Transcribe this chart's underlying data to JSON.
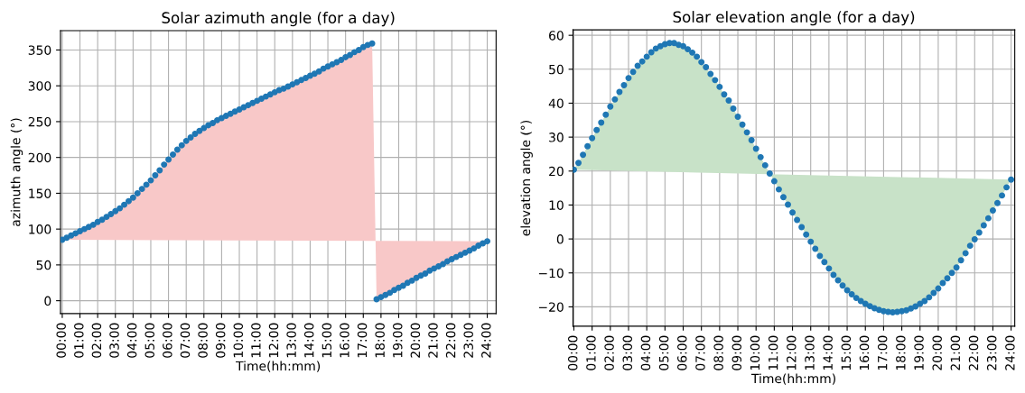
{
  "chart_data": [
    {
      "type": "scatter",
      "title": "Solar azimuth angle (for a day)",
      "xlabel": "Time(hh:mm)",
      "ylabel": "azimuth angle (°)",
      "grid": true,
      "x": [
        0,
        0.25,
        0.5,
        0.75,
        1,
        1.25,
        1.5,
        1.75,
        2,
        2.25,
        2.5,
        2.75,
        3,
        3.25,
        3.5,
        3.75,
        4,
        4.25,
        4.5,
        4.75,
        5,
        5.25,
        5.5,
        5.75,
        6,
        6.25,
        6.5,
        6.75,
        7,
        7.25,
        7.5,
        7.75,
        8,
        8.25,
        8.5,
        8.75,
        9,
        9.25,
        9.5,
        9.75,
        10,
        10.25,
        10.5,
        10.75,
        11,
        11.25,
        11.5,
        11.75,
        12,
        12.25,
        12.5,
        12.75,
        13,
        13.25,
        13.5,
        13.75,
        14,
        14.25,
        14.5,
        14.75,
        15,
        15.25,
        15.5,
        15.75,
        16,
        16.25,
        16.5,
        16.75,
        17,
        17.25,
        17.5,
        17.75,
        18,
        18.25,
        18.5,
        18.75,
        19,
        19.25,
        19.5,
        19.75,
        20,
        20.25,
        20.5,
        20.75,
        21,
        21.25,
        21.5,
        21.75,
        22,
        22.25,
        22.5,
        22.75,
        23,
        23.25,
        23.5,
        23.75,
        24
      ],
      "xlim": [
        -0.1,
        24.5
      ],
      "ylim": [
        -18,
        377
      ],
      "yticks": [
        0,
        50,
        100,
        150,
        200,
        250,
        300,
        350
      ],
      "xticks": [
        {
          "value": 0,
          "label": "00:00"
        },
        {
          "value": 1,
          "label": "01:00"
        },
        {
          "value": 2,
          "label": "02:00"
        },
        {
          "value": 3,
          "label": "03:00"
        },
        {
          "value": 4,
          "label": "04:00"
        },
        {
          "value": 5,
          "label": "05:00"
        },
        {
          "value": 6,
          "label": "06:00"
        },
        {
          "value": 7,
          "label": "07:00"
        },
        {
          "value": 8,
          "label": "08:00"
        },
        {
          "value": 9,
          "label": "09:00"
        },
        {
          "value": 10,
          "label": "10:00"
        },
        {
          "value": 11,
          "label": "11:00"
        },
        {
          "value": 12,
          "label": "12:00"
        },
        {
          "value": 13,
          "label": "13:00"
        },
        {
          "value": 14,
          "label": "14:00"
        },
        {
          "value": 15,
          "label": "15:00"
        },
        {
          "value": 16,
          "label": "16:00"
        },
        {
          "value": 17,
          "label": "17:00"
        },
        {
          "value": 18,
          "label": "18:00"
        },
        {
          "value": 19,
          "label": "19:00"
        },
        {
          "value": 20,
          "label": "20:00"
        },
        {
          "value": 21,
          "label": "21:00"
        },
        {
          "value": 22,
          "label": "22:00"
        },
        {
          "value": 23,
          "label": "23:00"
        },
        {
          "value": 24,
          "label": "24:00"
        }
      ],
      "series": [
        {
          "type": "area",
          "color": "#f8c8c8",
          "values": [
            85,
            88,
            91,
            94,
            97,
            100,
            103,
            106,
            110,
            113,
            117,
            121,
            125,
            129,
            134,
            139,
            144,
            150,
            156,
            162,
            168,
            175,
            182,
            190,
            197,
            204,
            211,
            217,
            223,
            228,
            233,
            237,
            241,
            245,
            248,
            252,
            255,
            258,
            261,
            264,
            267,
            270,
            273,
            276,
            279,
            282,
            285,
            288,
            291,
            294,
            296,
            299,
            302,
            305,
            308,
            311,
            314,
            317,
            320,
            324,
            327,
            330,
            333,
            336,
            340,
            343,
            347,
            350,
            354,
            357,
            359,
            2,
            5,
            8,
            11,
            15,
            18,
            21,
            25,
            28,
            32,
            35,
            38,
            42,
            45,
            48,
            51,
            55,
            58,
            61,
            64,
            67,
            70,
            73,
            77,
            80,
            83
          ]
        },
        {
          "marker": "circle",
          "color": "#1f77b4",
          "values": [
            85,
            88,
            91,
            94,
            97,
            100,
            103,
            106,
            110,
            113,
            117,
            121,
            125,
            129,
            134,
            139,
            144,
            150,
            156,
            162,
            168,
            175,
            182,
            190,
            197,
            204,
            211,
            217,
            223,
            228,
            233,
            237,
            241,
            245,
            248,
            252,
            255,
            258,
            261,
            264,
            267,
            270,
            273,
            276,
            279,
            282,
            285,
            288,
            291,
            294,
            296,
            299,
            302,
            305,
            308,
            311,
            314,
            317,
            320,
            324,
            327,
            330,
            333,
            336,
            340,
            343,
            347,
            350,
            354,
            357,
            359,
            2,
            5,
            8,
            11,
            15,
            18,
            21,
            25,
            28,
            32,
            35,
            38,
            42,
            45,
            48,
            51,
            55,
            58,
            61,
            64,
            67,
            70,
            73,
            77,
            80,
            83
          ]
        }
      ]
    },
    {
      "type": "scatter",
      "title": "Solar elevation angle (for a day)",
      "xlabel": "Time(hh:mm)",
      "ylabel": "elevation angle (°)",
      "grid": true,
      "x": [
        0,
        0.25,
        0.5,
        0.75,
        1,
        1.25,
        1.5,
        1.75,
        2,
        2.25,
        2.5,
        2.75,
        3,
        3.25,
        3.5,
        3.75,
        4,
        4.25,
        4.5,
        4.75,
        5,
        5.25,
        5.5,
        5.75,
        6,
        6.25,
        6.5,
        6.75,
        7,
        7.25,
        7.5,
        7.75,
        8,
        8.25,
        8.5,
        8.75,
        9,
        9.25,
        9.5,
        9.75,
        10,
        10.25,
        10.5,
        10.75,
        11,
        11.25,
        11.5,
        11.75,
        12,
        12.25,
        12.5,
        12.75,
        13,
        13.25,
        13.5,
        13.75,
        14,
        14.25,
        14.5,
        14.75,
        15,
        15.25,
        15.5,
        15.75,
        16,
        16.25,
        16.5,
        16.75,
        17,
        17.25,
        17.5,
        17.75,
        18,
        18.25,
        18.5,
        18.75,
        19,
        19.25,
        19.5,
        19.75,
        20,
        20.25,
        20.5,
        20.75,
        21,
        21.25,
        21.5,
        21.75,
        22,
        22.25,
        22.5,
        22.75,
        23,
        23.25,
        23.5,
        23.75,
        24
      ],
      "xlim": [
        -0.05,
        24.2
      ],
      "ylim": [
        -25.7,
        61.6
      ],
      "yticks": [
        {
          "value": -20,
          "label": "−20"
        },
        {
          "value": -10,
          "label": "−10"
        },
        0,
        10,
        20,
        30,
        40,
        50,
        60
      ],
      "xticks": [
        {
          "value": 0,
          "label": "00:00"
        },
        {
          "value": 1,
          "label": "01:00"
        },
        {
          "value": 2,
          "label": "02:00"
        },
        {
          "value": 3,
          "label": "03:00"
        },
        {
          "value": 4,
          "label": "04:00"
        },
        {
          "value": 5,
          "label": "05:00"
        },
        {
          "value": 6,
          "label": "06:00"
        },
        {
          "value": 7,
          "label": "07:00"
        },
        {
          "value": 8,
          "label": "08:00"
        },
        {
          "value": 9,
          "label": "09:00"
        },
        {
          "value": 10,
          "label": "10:00"
        },
        {
          "value": 11,
          "label": "11:00"
        },
        {
          "value": 12,
          "label": "12:00"
        },
        {
          "value": 13,
          "label": "13:00"
        },
        {
          "value": 14,
          "label": "14:00"
        },
        {
          "value": 15,
          "label": "15:00"
        },
        {
          "value": 16,
          "label": "16:00"
        },
        {
          "value": 17,
          "label": "17:00"
        },
        {
          "value": 18,
          "label": "18:00"
        },
        {
          "value": 19,
          "label": "19:00"
        },
        {
          "value": 20,
          "label": "20:00"
        },
        {
          "value": 21,
          "label": "21:00"
        },
        {
          "value": 22,
          "label": "22:00"
        },
        {
          "value": 23,
          "label": "23:00"
        },
        {
          "value": 24,
          "label": "24:00"
        }
      ],
      "series": [
        {
          "type": "area",
          "color": "#c8e2c8",
          "values": [
            20.4,
            22.4,
            24.8,
            27.3,
            29.7,
            32.1,
            34.3,
            36.6,
            39.0,
            41.1,
            43.3,
            45.3,
            47.4,
            49.2,
            51.0,
            52.3,
            53.7,
            55.0,
            56.1,
            56.8,
            57.4,
            57.7,
            57.7,
            57.2,
            56.8,
            55.9,
            54.9,
            53.7,
            52.1,
            50.6,
            48.6,
            46.8,
            44.8,
            42.6,
            40.8,
            38.4,
            36.0,
            33.7,
            31.4,
            29.1,
            26.6,
            24.1,
            21.7,
            19.3,
            17.0,
            14.6,
            12.3,
            10.1,
            7.8,
            5.6,
            3.5,
            1.3,
            -0.8,
            -2.9,
            -5.0,
            -6.8,
            -8.7,
            -10.6,
            -12.2,
            -13.7,
            -15.1,
            -16.3,
            -17.4,
            -18.3,
            -19.1,
            -19.8,
            -20.4,
            -20.9,
            -21.3,
            -21.5,
            -21.6,
            -21.5,
            -21.3,
            -21.0,
            -20.5,
            -19.9,
            -19.1,
            -18.3,
            -17.2,
            -15.9,
            -14.6,
            -13.0,
            -11.6,
            -10.0,
            -8.4,
            -6.3,
            -4.2,
            -2.0,
            -0.1,
            1.9,
            4.0,
            6.1,
            8.4,
            10.6,
            12.8,
            15.2,
            17.5
          ]
        },
        {
          "marker": "circle",
          "color": "#1f77b4",
          "values": [
            20.4,
            22.4,
            24.8,
            27.3,
            29.7,
            32.1,
            34.3,
            36.6,
            39.0,
            41.1,
            43.3,
            45.3,
            47.4,
            49.2,
            51.0,
            52.3,
            53.7,
            55.0,
            56.1,
            56.8,
            57.4,
            57.7,
            57.7,
            57.2,
            56.8,
            55.9,
            54.9,
            53.7,
            52.1,
            50.6,
            48.6,
            46.8,
            44.8,
            42.6,
            40.8,
            38.4,
            36.0,
            33.7,
            31.4,
            29.1,
            26.6,
            24.1,
            21.7,
            19.3,
            17.0,
            14.6,
            12.3,
            10.1,
            7.8,
            5.6,
            3.5,
            1.3,
            -0.8,
            -2.9,
            -5.0,
            -6.8,
            -8.7,
            -10.6,
            -12.2,
            -13.7,
            -15.1,
            -16.3,
            -17.4,
            -18.3,
            -19.1,
            -19.8,
            -20.4,
            -20.9,
            -21.3,
            -21.5,
            -21.6,
            -21.5,
            -21.3,
            -21.0,
            -20.5,
            -19.9,
            -19.1,
            -18.3,
            -17.2,
            -15.9,
            -14.6,
            -13.0,
            -11.6,
            -10.0,
            -8.4,
            -6.3,
            -4.2,
            -2.0,
            -0.1,
            1.9,
            4.0,
            6.1,
            8.4,
            10.6,
            12.8,
            15.2,
            17.5
          ]
        }
      ]
    }
  ]
}
